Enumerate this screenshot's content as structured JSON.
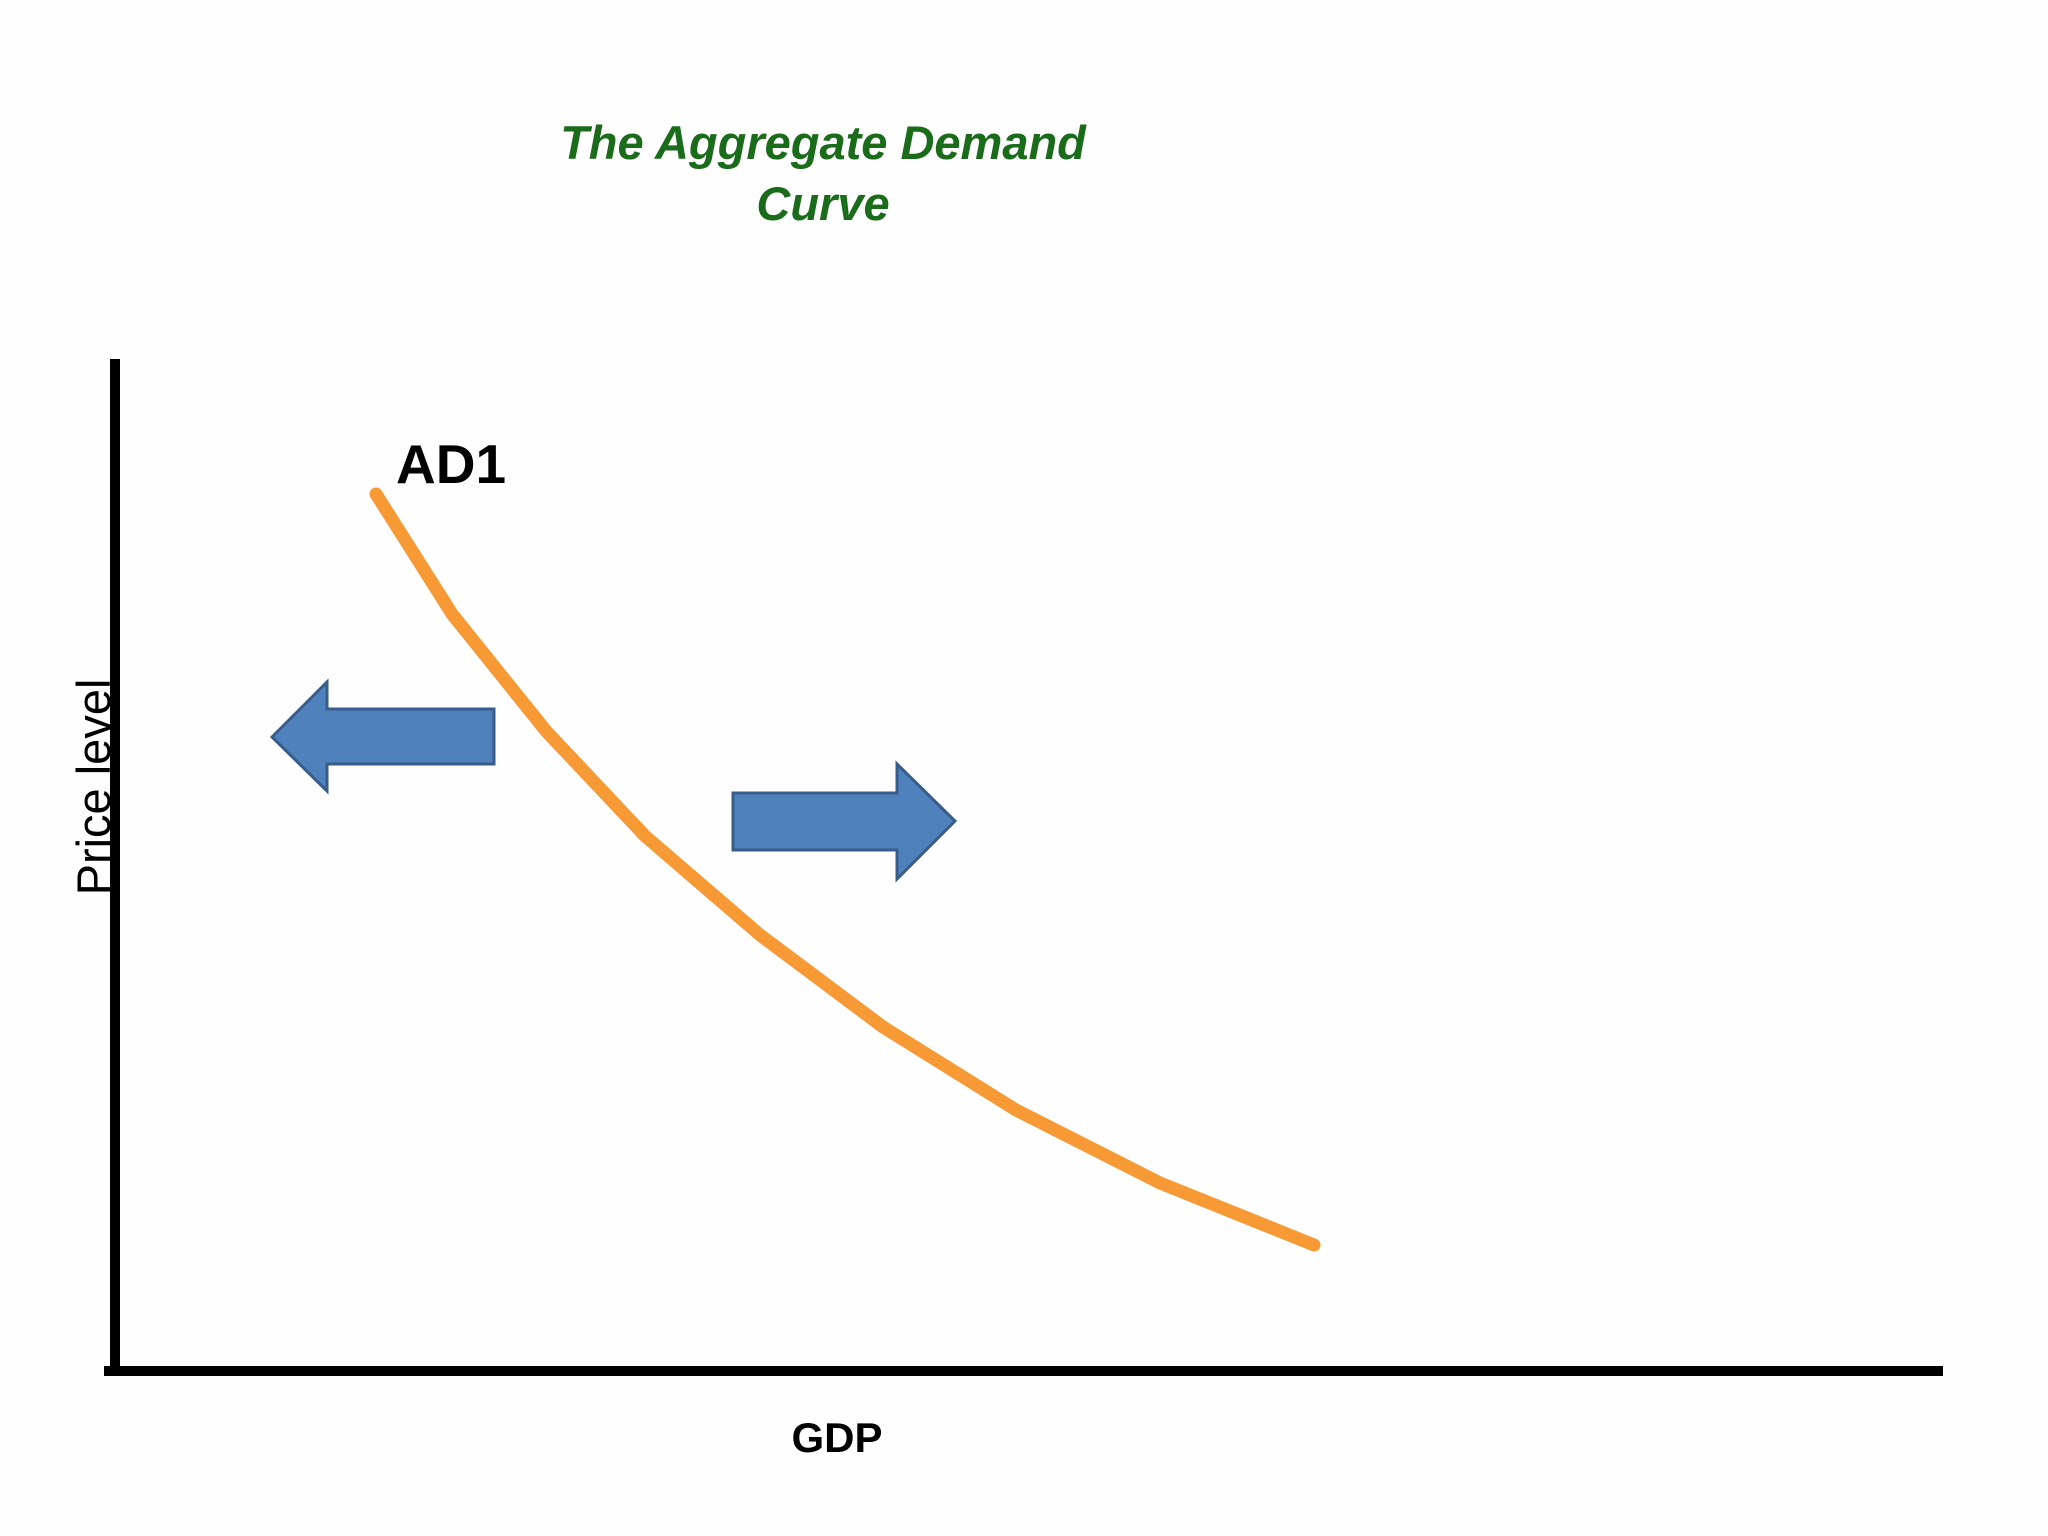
{
  "title": "The Aggregate Demand Curve",
  "curve_label": "AD1",
  "y_axis_label": "Price level",
  "x_axis_label": "GDP"
}
